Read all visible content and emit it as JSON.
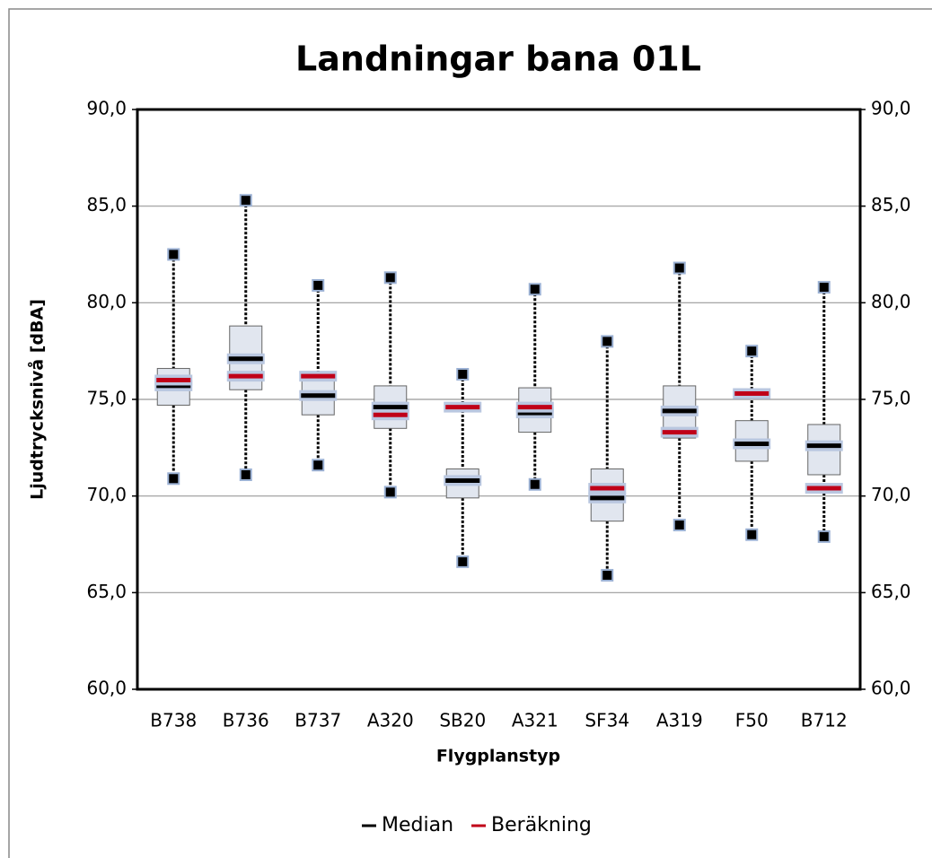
{
  "chart_data": {
    "type": "box",
    "title": "Landningar bana 01L",
    "x_label": "Flygplanstyp",
    "y_label": "Ljudtrycksnivå [dBA]",
    "categories": [
      "B738",
      "B736",
      "B737",
      "A320",
      "SB20",
      "A321",
      "SF34",
      "A319",
      "F50",
      "B712"
    ],
    "boxes": {
      "min": [
        70.9,
        71.1,
        71.6,
        70.2,
        66.6,
        70.6,
        65.9,
        68.5,
        68.0,
        67.9
      ],
      "q1": [
        74.7,
        75.5,
        74.2,
        73.5,
        69.9,
        73.3,
        68.7,
        73.0,
        71.8,
        71.1
      ],
      "q3": [
        76.6,
        78.8,
        76.4,
        75.7,
        71.4,
        75.6,
        71.4,
        75.7,
        73.9,
        73.7
      ],
      "max": [
        82.5,
        85.3,
        80.9,
        81.3,
        76.3,
        80.7,
        78.0,
        81.8,
        77.5,
        80.8
      ]
    },
    "series": [
      {
        "name": "Median",
        "color": "#000000",
        "values": [
          75.7,
          77.1,
          75.2,
          74.6,
          70.8,
          74.3,
          69.9,
          74.4,
          72.7,
          72.6
        ]
      },
      {
        "name": "Beräkning",
        "color": "#c00018",
        "values": [
          76.0,
          76.2,
          76.2,
          74.2,
          74.6,
          74.6,
          70.4,
          73.3,
          75.3,
          70.4
        ]
      }
    ],
    "ylim": [
      60,
      90
    ],
    "yticks": [
      {
        "value": 60,
        "label": "60,0"
      },
      {
        "value": 65,
        "label": "65,0"
      },
      {
        "value": 70,
        "label": "70,0"
      },
      {
        "value": 75,
        "label": "75,0"
      },
      {
        "value": 80,
        "label": "80,0"
      },
      {
        "value": 85,
        "label": "85,0"
      },
      {
        "value": 90,
        "label": "90,0"
      }
    ],
    "y2lim": [
      60,
      90
    ],
    "y2ticks": [
      {
        "value": 60,
        "label": "60,0"
      },
      {
        "value": 65,
        "label": "65,0"
      },
      {
        "value": 70,
        "label": "70,0"
      },
      {
        "value": 75,
        "label": "75,0"
      },
      {
        "value": 80,
        "label": "80,0"
      },
      {
        "value": 85,
        "label": "85,0"
      },
      {
        "value": 90,
        "label": "90,0"
      }
    ],
    "grid": true,
    "legend": "bottom"
  }
}
